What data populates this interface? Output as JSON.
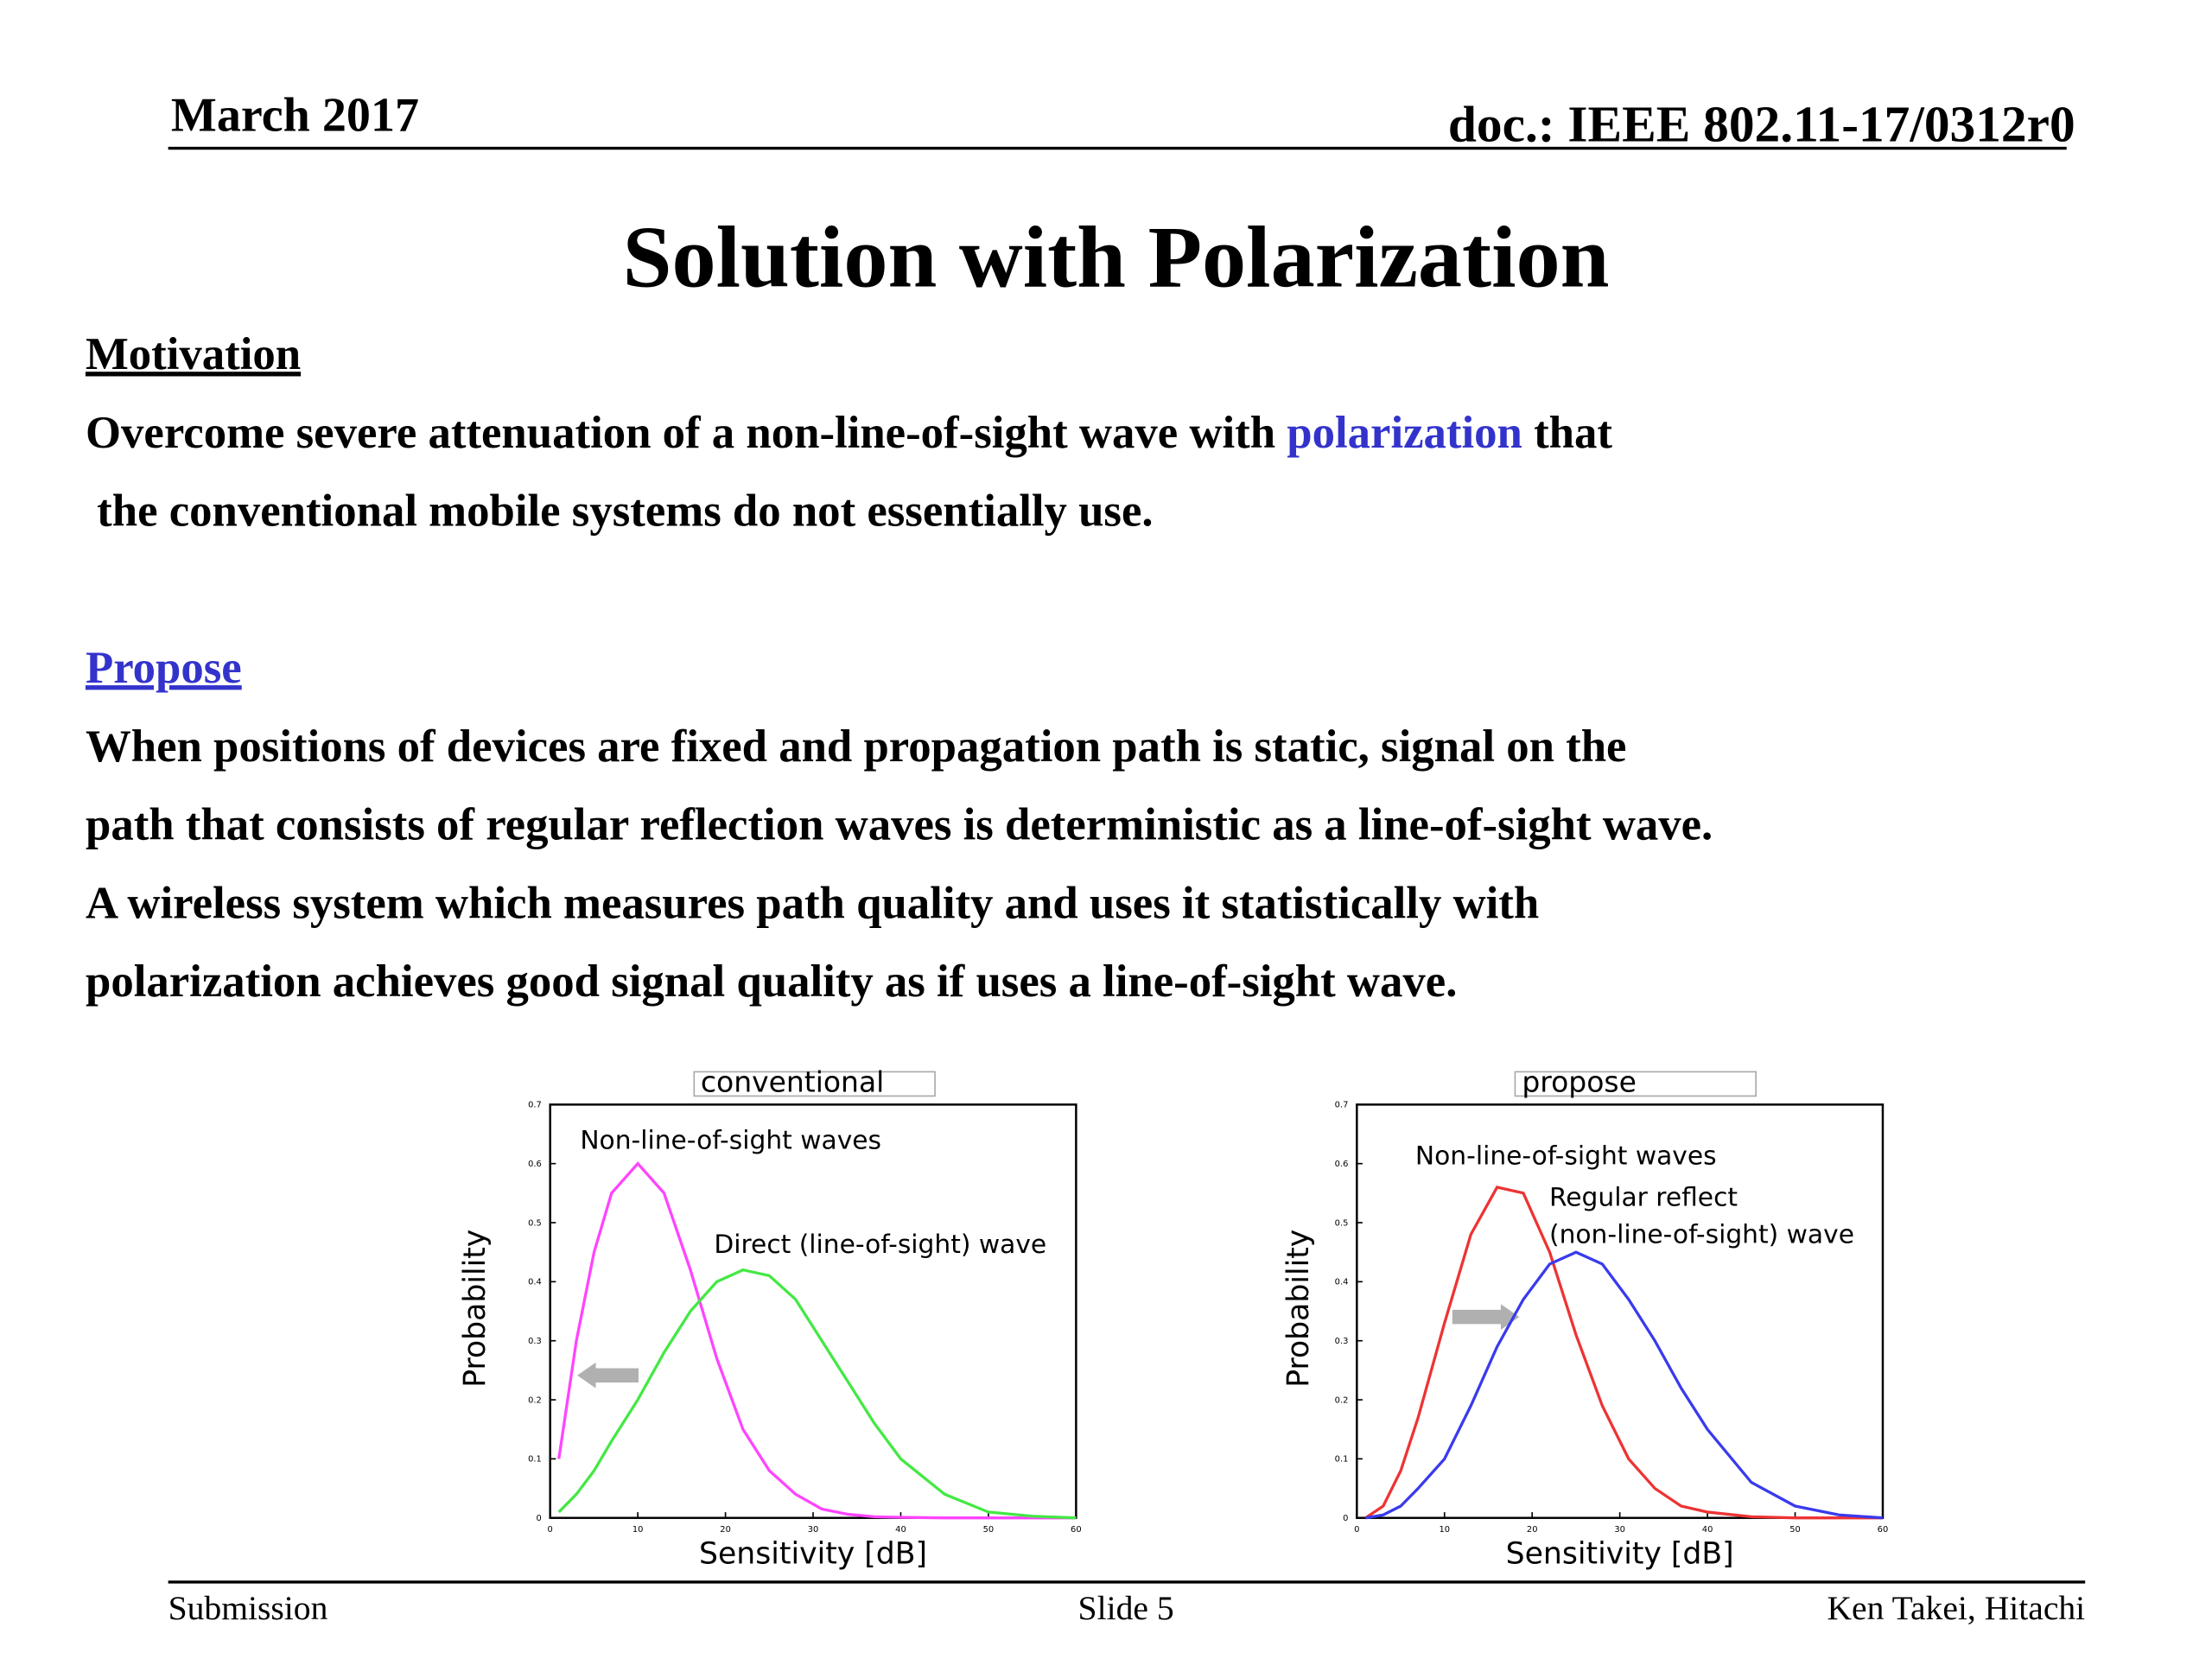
{
  "header": {
    "date": "March 2017",
    "doc": "doc.: IEEE 802.11-17/0312r0"
  },
  "title": "Solution with Polarization",
  "motivation": {
    "heading": "Motivation",
    "lines": [
      [
        "Overcome severe attenuation of a non-line-of-sight wave with ",
        "polarization",
        " that"
      ],
      [
        " the conventional mobile systems do not essentially use."
      ]
    ]
  },
  "propose": {
    "heading": "Propose",
    "lines": [
      "When positions of devices are fixed and propagation path is static, signal on the",
      "path that consists of regular reflection waves is deterministic as a line-of-sight wave.",
      "A wireless system which measures path quality and uses it statistically with",
      "polarization achieves good signal quality as if uses a line-of-sight wave."
    ]
  },
  "chart_data": [
    {
      "type": "line",
      "title": "conventional",
      "x_label": "Sensitivity [dB]",
      "y_label": "Probability",
      "x": [
        1,
        3,
        5,
        7,
        10,
        13,
        16,
        19,
        22,
        25,
        28,
        31,
        34,
        37,
        40,
        45,
        50,
        55,
        60
      ],
      "series": [
        {
          "color": "#ff44ff",
          "values": [
            0.1,
            0.3,
            0.45,
            0.55,
            0.6,
            0.55,
            0.42,
            0.27,
            0.15,
            0.08,
            0.04,
            0.015,
            0.006,
            0.002,
            0.001,
            0,
            0,
            0,
            0
          ]
        },
        {
          "color": "#44e844",
          "values": [
            0.01,
            0.04,
            0.08,
            0.13,
            0.2,
            0.28,
            0.35,
            0.4,
            0.42,
            0.41,
            0.37,
            0.3,
            0.23,
            0.16,
            0.1,
            0.04,
            0.01,
            0.003,
            0
          ]
        }
      ],
      "annotations": [
        "Non-line-of-sight waves",
        "Direct (line-of-sight) wave"
      ],
      "xlim": [
        0,
        60
      ],
      "xticks": [
        0,
        10,
        20,
        30,
        40,
        50,
        60
      ],
      "ylim": [
        0,
        0.7
      ],
      "yticks": [
        0,
        0.1,
        0.2,
        0.3,
        0.4,
        0.5,
        0.6,
        0.7
      ]
    },
    {
      "type": "line",
      "title": "propose",
      "x_label": "Sensitivity [dB]",
      "y_label": "Probability",
      "x": [
        1,
        3,
        5,
        7,
        10,
        13,
        16,
        19,
        22,
        25,
        28,
        31,
        34,
        37,
        40,
        45,
        50,
        55,
        60
      ],
      "series": [
        {
          "color": "#ee3333",
          "values": [
            0,
            0.02,
            0.08,
            0.17,
            0.33,
            0.48,
            0.56,
            0.55,
            0.45,
            0.31,
            0.19,
            0.1,
            0.05,
            0.02,
            0.01,
            0.002,
            0,
            0,
            0
          ]
        },
        {
          "color": "#3a3aee",
          "values": [
            0,
            0.005,
            0.02,
            0.05,
            0.1,
            0.19,
            0.29,
            0.37,
            0.43,
            0.45,
            0.43,
            0.37,
            0.3,
            0.22,
            0.15,
            0.06,
            0.02,
            0.005,
            0
          ]
        }
      ],
      "annotations": [
        "Non-line-of-sight waves",
        "Regular reflect",
        "(non-line-of-sight) wave"
      ],
      "xlim": [
        0,
        60
      ],
      "xticks": [
        0,
        10,
        20,
        30,
        40,
        50,
        60
      ],
      "ylim": [
        0,
        0.7
      ],
      "yticks": [
        0,
        0.1,
        0.2,
        0.3,
        0.4,
        0.5,
        0.6,
        0.7
      ]
    }
  ],
  "footer": {
    "left": "Submission",
    "center": "Slide 5",
    "right": "Ken Takei, Hitachi"
  }
}
